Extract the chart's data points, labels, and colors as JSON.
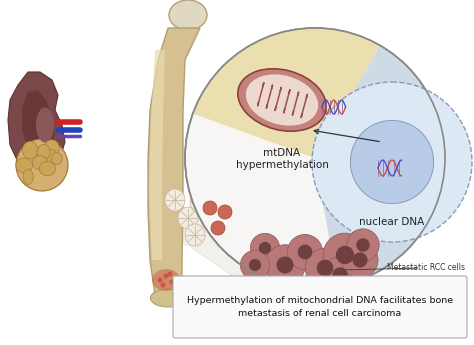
{
  "title_text": "Hypermethylation of mitochondrial DNA facilitates bone\nmetastasis of renal cell carcinoma",
  "label_mtdna": "mtDNA\nhypermethylation",
  "label_nuclear": "nuclear DNA",
  "label_metastatic": "Metastatic RCC cells",
  "bg_color": "#ffffff",
  "fig_width": 4.74,
  "fig_height": 3.45,
  "dpi": 100,
  "mito_color": "#c4827a",
  "mito_inner": "#eed8d0",
  "cancer_cell_color": "#b87878",
  "cancer_cell_dark": "#906060",
  "bone_color": "#d4c090",
  "bone_highlight": "#e8ddb0",
  "kidney_color": "#7a4848",
  "tumor_color": "#d4b070",
  "triangle_fill": "#e8e4dc"
}
